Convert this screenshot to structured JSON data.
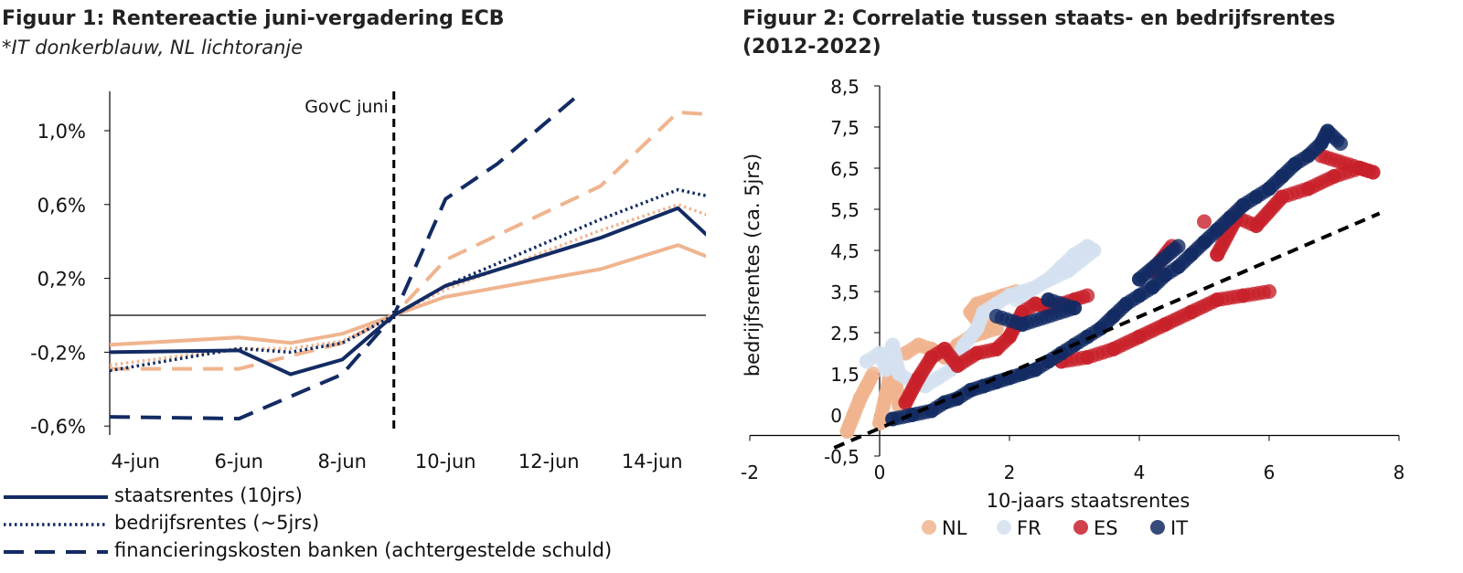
{
  "figure1": {
    "title": "Figuur 1: Rentereactie juni-vergadering ECB",
    "subtitle": "*IT donkerblauw, NL lichtoranje",
    "vline_label": "GovC juni",
    "legend": [
      {
        "label": "staatsrentes (10jrs)",
        "style": "solid"
      },
      {
        "label": "bedrijfsrentes (~5jrs)",
        "style": "dotted"
      },
      {
        "label": "financieringskosten banken (achtergestelde schuld)",
        "style": "dashed"
      }
    ]
  },
  "figure2": {
    "title_line1": "Figuur 2: Correlatie tussen staats- en bedrijfsrentes",
    "title_line2": "(2012-2022)",
    "legend": [
      {
        "label": "NL",
        "color": "#f0b48e"
      },
      {
        "label": "FR",
        "color": "#d5e1f0"
      },
      {
        "label": "ES",
        "color": "#c8202a"
      },
      {
        "label": "IT",
        "color": "#132b63"
      }
    ]
  },
  "chart_data": [
    {
      "type": "line",
      "title": "Figuur 1: Rentereactie juni-vergadering ECB",
      "x_tick_labels": [
        "4-jun",
        "6-jun",
        "8-jun",
        "10-jun",
        "12-jun",
        "14-jun"
      ],
      "y_tick_labels": [
        "1,0%",
        "0,6%",
        "0,2%",
        "-0,2%",
        "-0,6%"
      ],
      "y_ticks": [
        1.0,
        0.6,
        0.2,
        -0.2,
        -0.6
      ],
      "ylim": [
        -0.62,
        1.2
      ],
      "xlim": [
        3.5,
        15.5
      ],
      "vline_x": 9,
      "colors": {
        "IT": "#132b63",
        "NL": "#f0b48e"
      },
      "series": [
        {
          "country": "IT",
          "style": "solid",
          "x": [
            3.5,
            6,
            7,
            8,
            9,
            10,
            13,
            14.5,
            15.5
          ],
          "y": [
            -0.2,
            -0.19,
            -0.32,
            -0.24,
            0.0,
            0.16,
            0.42,
            0.58,
            0.32
          ]
        },
        {
          "country": "NL",
          "style": "solid",
          "x": [
            3.5,
            6,
            7,
            8,
            9,
            10,
            13,
            14.5,
            15.5
          ],
          "y": [
            -0.16,
            -0.12,
            -0.15,
            -0.1,
            0.0,
            0.1,
            0.25,
            0.38,
            0.27
          ]
        },
        {
          "country": "IT",
          "style": "dotted",
          "x": [
            3.5,
            6,
            7,
            8,
            9,
            10,
            13,
            14.5,
            15.5
          ],
          "y": [
            -0.3,
            -0.18,
            -0.2,
            -0.15,
            0.0,
            0.16,
            0.52,
            0.68,
            0.62
          ]
        },
        {
          "country": "NL",
          "style": "dotted",
          "x": [
            3.5,
            6,
            7,
            8,
            9,
            10,
            13,
            14.5,
            15.5
          ],
          "y": [
            -0.27,
            -0.18,
            -0.18,
            -0.14,
            0.0,
            0.14,
            0.46,
            0.6,
            0.5
          ]
        },
        {
          "country": "IT",
          "style": "dashed",
          "x": [
            3.5,
            6,
            8,
            9,
            10,
            11,
            12.6
          ],
          "y": [
            -0.55,
            -0.56,
            -0.32,
            0.0,
            0.63,
            0.82,
            1.2
          ]
        },
        {
          "country": "NL",
          "style": "dashed",
          "x": [
            3.5,
            6,
            8,
            9,
            10,
            13,
            14.5,
            15.5
          ],
          "y": [
            -0.29,
            -0.29,
            -0.15,
            0.0,
            0.3,
            0.7,
            1.1,
            1.08
          ]
        }
      ]
    },
    {
      "type": "scatter",
      "title": "Figuur 2: Correlatie tussen staats- en bedrijfsrentes (2012-2022)",
      "xlabel": "10-jaars staatsrentes",
      "ylabel": "bedrijfsrentes (ca. 5jrs)",
      "xlim": [
        -2,
        8
      ],
      "ylim": [
        -0.5,
        8.5
      ],
      "x_ticks": [
        -2,
        0,
        2,
        4,
        6,
        8
      ],
      "y_tick_labels": [
        "8,5",
        "7,5",
        "6,5",
        "5,5",
        "4,5",
        "3,5",
        "2,5",
        "1,5",
        "0,5",
        "-0,5"
      ],
      "y_ticks": [
        8.5,
        7.5,
        6.5,
        5.5,
        4.5,
        3.5,
        2.5,
        1.5,
        0.5,
        -0.5
      ],
      "trendline": {
        "x": [
          -0.7,
          7.7
        ],
        "y": [
          -0.3,
          5.4
        ],
        "style": "dashed",
        "color": "#000000"
      },
      "series": [
        {
          "name": "NL",
          "color": "#f0b48e",
          "points": [
            [
              -0.5,
              0.1
            ],
            [
              -0.4,
              0.5
            ],
            [
              -0.3,
              0.9
            ],
            [
              -0.2,
              1.2
            ],
            [
              -0.1,
              1.5
            ],
            [
              0.0,
              0.3
            ],
            [
              0.1,
              1.0
            ],
            [
              0.2,
              1.8
            ],
            [
              0.3,
              0.7
            ],
            [
              0.4,
              2.0
            ],
            [
              0.6,
              2.2
            ],
            [
              0.8,
              2.1
            ],
            [
              1.0,
              1.9
            ],
            [
              1.2,
              2.2
            ],
            [
              1.4,
              2.4
            ],
            [
              1.6,
              2.5
            ],
            [
              1.8,
              2.6
            ],
            [
              1.5,
              2.8
            ],
            [
              1.4,
              3.0
            ],
            [
              1.5,
              3.2
            ],
            [
              1.7,
              3.3
            ],
            [
              1.9,
              3.4
            ],
            [
              2.1,
              3.5
            ]
          ]
        },
        {
          "name": "FR",
          "color": "#d5e1f0",
          "points": [
            [
              -0.2,
              1.8
            ],
            [
              0.0,
              2.0
            ],
            [
              0.1,
              1.6
            ],
            [
              0.2,
              2.2
            ],
            [
              0.3,
              1.5
            ],
            [
              0.5,
              1.3
            ],
            [
              0.7,
              1.2
            ],
            [
              0.9,
              1.4
            ],
            [
              1.1,
              1.6
            ],
            [
              1.3,
              2.2
            ],
            [
              1.5,
              2.6
            ],
            [
              1.6,
              3.0
            ],
            [
              1.8,
              3.2
            ],
            [
              2.0,
              3.4
            ],
            [
              2.2,
              3.5
            ],
            [
              2.4,
              3.6
            ],
            [
              2.6,
              3.8
            ],
            [
              2.8,
              4.1
            ],
            [
              3.0,
              4.4
            ],
            [
              3.2,
              4.6
            ],
            [
              3.3,
              4.5
            ],
            [
              2.9,
              4.0
            ],
            [
              2.5,
              3.7
            ],
            [
              2.1,
              3.3
            ]
          ]
        },
        {
          "name": "ES",
          "color": "#c8202a",
          "points": [
            [
              0.4,
              0.8
            ],
            [
              0.6,
              1.4
            ],
            [
              0.8,
              1.9
            ],
            [
              1.0,
              2.1
            ],
            [
              1.2,
              1.7
            ],
            [
              1.5,
              2.0
            ],
            [
              1.8,
              2.1
            ],
            [
              2.0,
              2.4
            ],
            [
              2.2,
              3.0
            ],
            [
              2.4,
              3.2
            ],
            [
              2.6,
              3.1
            ],
            [
              3.0,
              3.3
            ],
            [
              3.2,
              3.4
            ],
            [
              2.8,
              1.8
            ],
            [
              3.2,
              1.9
            ],
            [
              3.6,
              2.1
            ],
            [
              4.0,
              2.4
            ],
            [
              4.4,
              2.7
            ],
            [
              4.8,
              3.0
            ],
            [
              5.2,
              3.3
            ],
            [
              5.6,
              3.4
            ],
            [
              6.0,
              3.5
            ],
            [
              5.2,
              4.4
            ],
            [
              5.5,
              5.3
            ],
            [
              5.8,
              5.1
            ],
            [
              6.2,
              5.8
            ],
            [
              6.6,
              6.0
            ],
            [
              7.0,
              6.3
            ],
            [
              7.4,
              6.5
            ],
            [
              7.6,
              6.4
            ],
            [
              6.8,
              6.8
            ],
            [
              5.0,
              5.2
            ],
            [
              4.2,
              4.0
            ],
            [
              4.5,
              4.6
            ]
          ]
        },
        {
          "name": "IT",
          "color": "#132b63",
          "points": [
            [
              0.2,
              0.4
            ],
            [
              0.5,
              0.5
            ],
            [
              0.8,
              0.6
            ],
            [
              1.0,
              0.8
            ],
            [
              1.2,
              0.9
            ],
            [
              1.4,
              1.1
            ],
            [
              1.6,
              1.2
            ],
            [
              1.8,
              1.3
            ],
            [
              2.0,
              1.4
            ],
            [
              2.2,
              1.5
            ],
            [
              2.4,
              1.6
            ],
            [
              2.6,
              1.8
            ],
            [
              2.8,
              2.0
            ],
            [
              3.0,
              2.2
            ],
            [
              3.2,
              2.4
            ],
            [
              3.4,
              2.6
            ],
            [
              3.6,
              2.9
            ],
            [
              3.8,
              3.2
            ],
            [
              4.0,
              3.4
            ],
            [
              4.2,
              3.6
            ],
            [
              4.4,
              3.9
            ],
            [
              4.6,
              4.1
            ],
            [
              4.8,
              4.4
            ],
            [
              5.0,
              4.7
            ],
            [
              5.2,
              5.0
            ],
            [
              5.4,
              5.3
            ],
            [
              5.6,
              5.6
            ],
            [
              5.8,
              5.8
            ],
            [
              6.0,
              6.0
            ],
            [
              6.2,
              6.3
            ],
            [
              6.4,
              6.6
            ],
            [
              6.6,
              6.8
            ],
            [
              6.8,
              7.1
            ],
            [
              6.9,
              7.4
            ],
            [
              7.1,
              7.1
            ],
            [
              2.6,
              3.3
            ],
            [
              3.0,
              3.1
            ],
            [
              2.2,
              2.7
            ],
            [
              1.8,
              2.9
            ],
            [
              4.0,
              3.8
            ],
            [
              4.6,
              4.6
            ]
          ]
        }
      ]
    }
  ]
}
